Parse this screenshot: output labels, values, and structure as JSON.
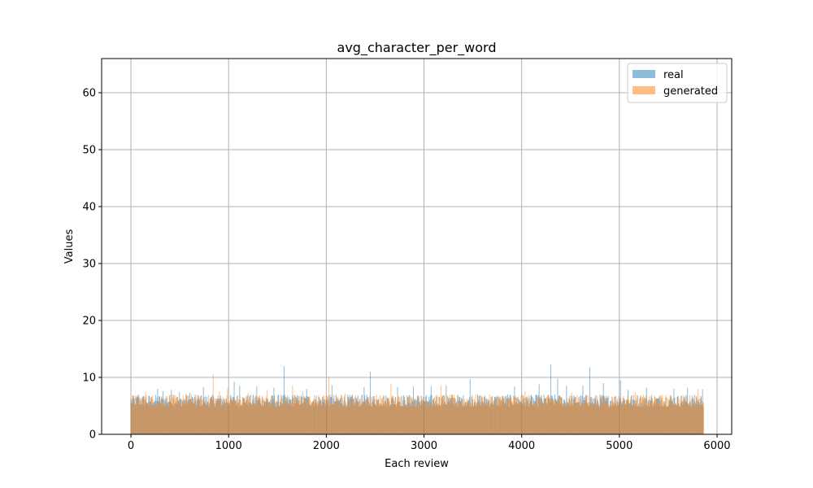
{
  "chart_data": {
    "type": "bar",
    "title": "avg_character_per_word",
    "xlabel": "Each review",
    "ylabel": "Values",
    "xlim": [
      -300,
      6150
    ],
    "ylim": [
      0,
      66
    ],
    "xticks": [
      0,
      1000,
      2000,
      3000,
      4000,
      5000,
      6000
    ],
    "yticks": [
      0,
      10,
      20,
      30,
      40,
      50,
      60
    ],
    "grid": true,
    "legend_position": "top-right",
    "n_reviews": 5860,
    "series": [
      {
        "name": "real",
        "color": "#1f77b4",
        "alpha": 0.5,
        "typical_value": 6,
        "peaks": [
          {
            "x": 20,
            "y": 6.8
          },
          {
            "x": 80,
            "y": 7.0
          },
          {
            "x": 270,
            "y": 8.0
          },
          {
            "x": 330,
            "y": 7.6
          },
          {
            "x": 410,
            "y": 7.8
          },
          {
            "x": 500,
            "y": 7.4
          },
          {
            "x": 600,
            "y": 7.3
          },
          {
            "x": 740,
            "y": 8.3
          },
          {
            "x": 1060,
            "y": 9.2
          },
          {
            "x": 1110,
            "y": 8.5
          },
          {
            "x": 1290,
            "y": 8.4
          },
          {
            "x": 1460,
            "y": 8.2
          },
          {
            "x": 1570,
            "y": 12.0
          },
          {
            "x": 1800,
            "y": 8.0
          },
          {
            "x": 2060,
            "y": 8.6
          },
          {
            "x": 2390,
            "y": 8.3
          },
          {
            "x": 2450,
            "y": 11.0
          },
          {
            "x": 2730,
            "y": 8.3
          },
          {
            "x": 2890,
            "y": 8.4
          },
          {
            "x": 3070,
            "y": 8.4
          },
          {
            "x": 3230,
            "y": 8.6
          },
          {
            "x": 3470,
            "y": 9.7
          },
          {
            "x": 3860,
            "y": 7.0
          },
          {
            "x": 3930,
            "y": 8.4
          },
          {
            "x": 4180,
            "y": 8.8
          },
          {
            "x": 4300,
            "y": 12.3
          },
          {
            "x": 4370,
            "y": 9.8
          },
          {
            "x": 4460,
            "y": 8.5
          },
          {
            "x": 4630,
            "y": 8.6
          },
          {
            "x": 4700,
            "y": 11.8
          },
          {
            "x": 4840,
            "y": 9.0
          },
          {
            "x": 5010,
            "y": 9.5
          },
          {
            "x": 5090,
            "y": 7.8
          },
          {
            "x": 5280,
            "y": 8.2
          },
          {
            "x": 5560,
            "y": 8.0
          },
          {
            "x": 5700,
            "y": 8.2
          },
          {
            "x": 5850,
            "y": 7.9
          }
        ]
      },
      {
        "name": "generated",
        "color": "#ff7f0e",
        "alpha": 0.5,
        "typical_value": 6,
        "peaks": [
          {
            "x": 150,
            "y": 7.4
          },
          {
            "x": 560,
            "y": 7.2
          },
          {
            "x": 840,
            "y": 10.5
          },
          {
            "x": 900,
            "y": 7.6
          },
          {
            "x": 990,
            "y": 8.1
          },
          {
            "x": 1200,
            "y": 7.3
          },
          {
            "x": 1390,
            "y": 7.8
          },
          {
            "x": 1650,
            "y": 8.6
          },
          {
            "x": 1760,
            "y": 7.6
          },
          {
            "x": 2020,
            "y": 10.1
          },
          {
            "x": 2190,
            "y": 7.2
          },
          {
            "x": 2660,
            "y": 8.8
          },
          {
            "x": 3170,
            "y": 8.5
          },
          {
            "x": 3750,
            "y": 6.9
          },
          {
            "x": 4030,
            "y": 7.6
          },
          {
            "x": 4510,
            "y": 7.3
          },
          {
            "x": 5160,
            "y": 7.4
          },
          {
            "x": 5800,
            "y": 8.0
          }
        ]
      }
    ]
  }
}
